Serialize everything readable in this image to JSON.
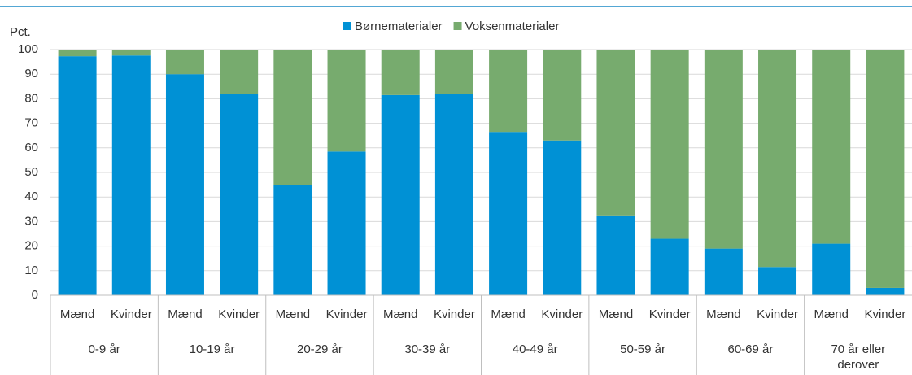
{
  "chart_data": {
    "type": "stacked_bar",
    "y_label": "Pct.",
    "categories": [
      "Mænd",
      "Kvinder",
      "Mænd",
      "Kvinder",
      "Mænd",
      "Kvinder",
      "Mænd",
      "Kvinder",
      "Mænd",
      "Kvinder",
      "Mænd",
      "Kvinder",
      "Mænd",
      "Kvinder",
      "Mænd",
      "Kvinder"
    ],
    "groups": [
      "0-9 år",
      "10-19 år",
      "20-29 år",
      "30-39 år",
      "40-49 år",
      "50-59 år",
      "60-69 år",
      "70 år eller derover"
    ],
    "series": [
      {
        "name": "Børnematerialer",
        "color": "#0091d5",
        "values": [
          97.3,
          97.6,
          90,
          81.8,
          44.7,
          58.5,
          81.5,
          82,
          66.5,
          63,
          32.5,
          23,
          19,
          11.5,
          21,
          3
        ]
      },
      {
        "name": "Voksenmaterialer",
        "color": "#77ab6e",
        "values": [
          2.7,
          2.4,
          10,
          18.2,
          55.3,
          41.5,
          18.5,
          18,
          33.5,
          37,
          67.5,
          77,
          81,
          88.5,
          79,
          97
        ]
      }
    ],
    "ylim": [
      0,
      100
    ],
    "yticks": [
      0,
      10,
      20,
      30,
      40,
      50,
      60,
      70,
      80,
      90,
      100
    ],
    "grid": true,
    "legend": "top"
  }
}
